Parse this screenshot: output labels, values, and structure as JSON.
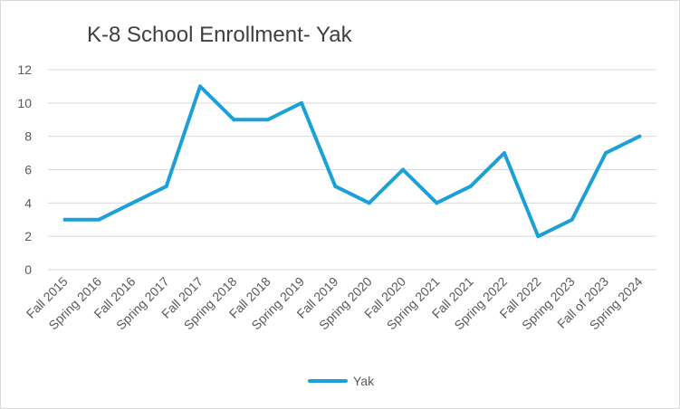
{
  "chart_data": {
    "type": "line",
    "title": "K-8 School Enrollment- Yak",
    "xlabel": "",
    "ylabel": "",
    "ylim": [
      0,
      12
    ],
    "yticks": [
      0,
      2,
      4,
      6,
      8,
      10,
      12
    ],
    "grid": true,
    "legend_position": "bottom",
    "categories": [
      "Fall 2015",
      "Spring 2016",
      "Fall 2016",
      "Spring 2017",
      "Fall 2017",
      "Spring 2018",
      "Fall 2018",
      "Spring 2019",
      "Fall 2019",
      "Spring 2020",
      "Fall 2020",
      "Spring 2021",
      "Fall 2021",
      "Spring 2022",
      "Fall 2022",
      "Spring 2023",
      "Fall of 2023",
      "Spring 2024"
    ],
    "series": [
      {
        "name": "Yak",
        "color": "#1ba1d7",
        "values": [
          3,
          3,
          4,
          5,
          11,
          9,
          9,
          10,
          5,
          4,
          6,
          4,
          5,
          7,
          2,
          3,
          7,
          8
        ]
      }
    ]
  }
}
